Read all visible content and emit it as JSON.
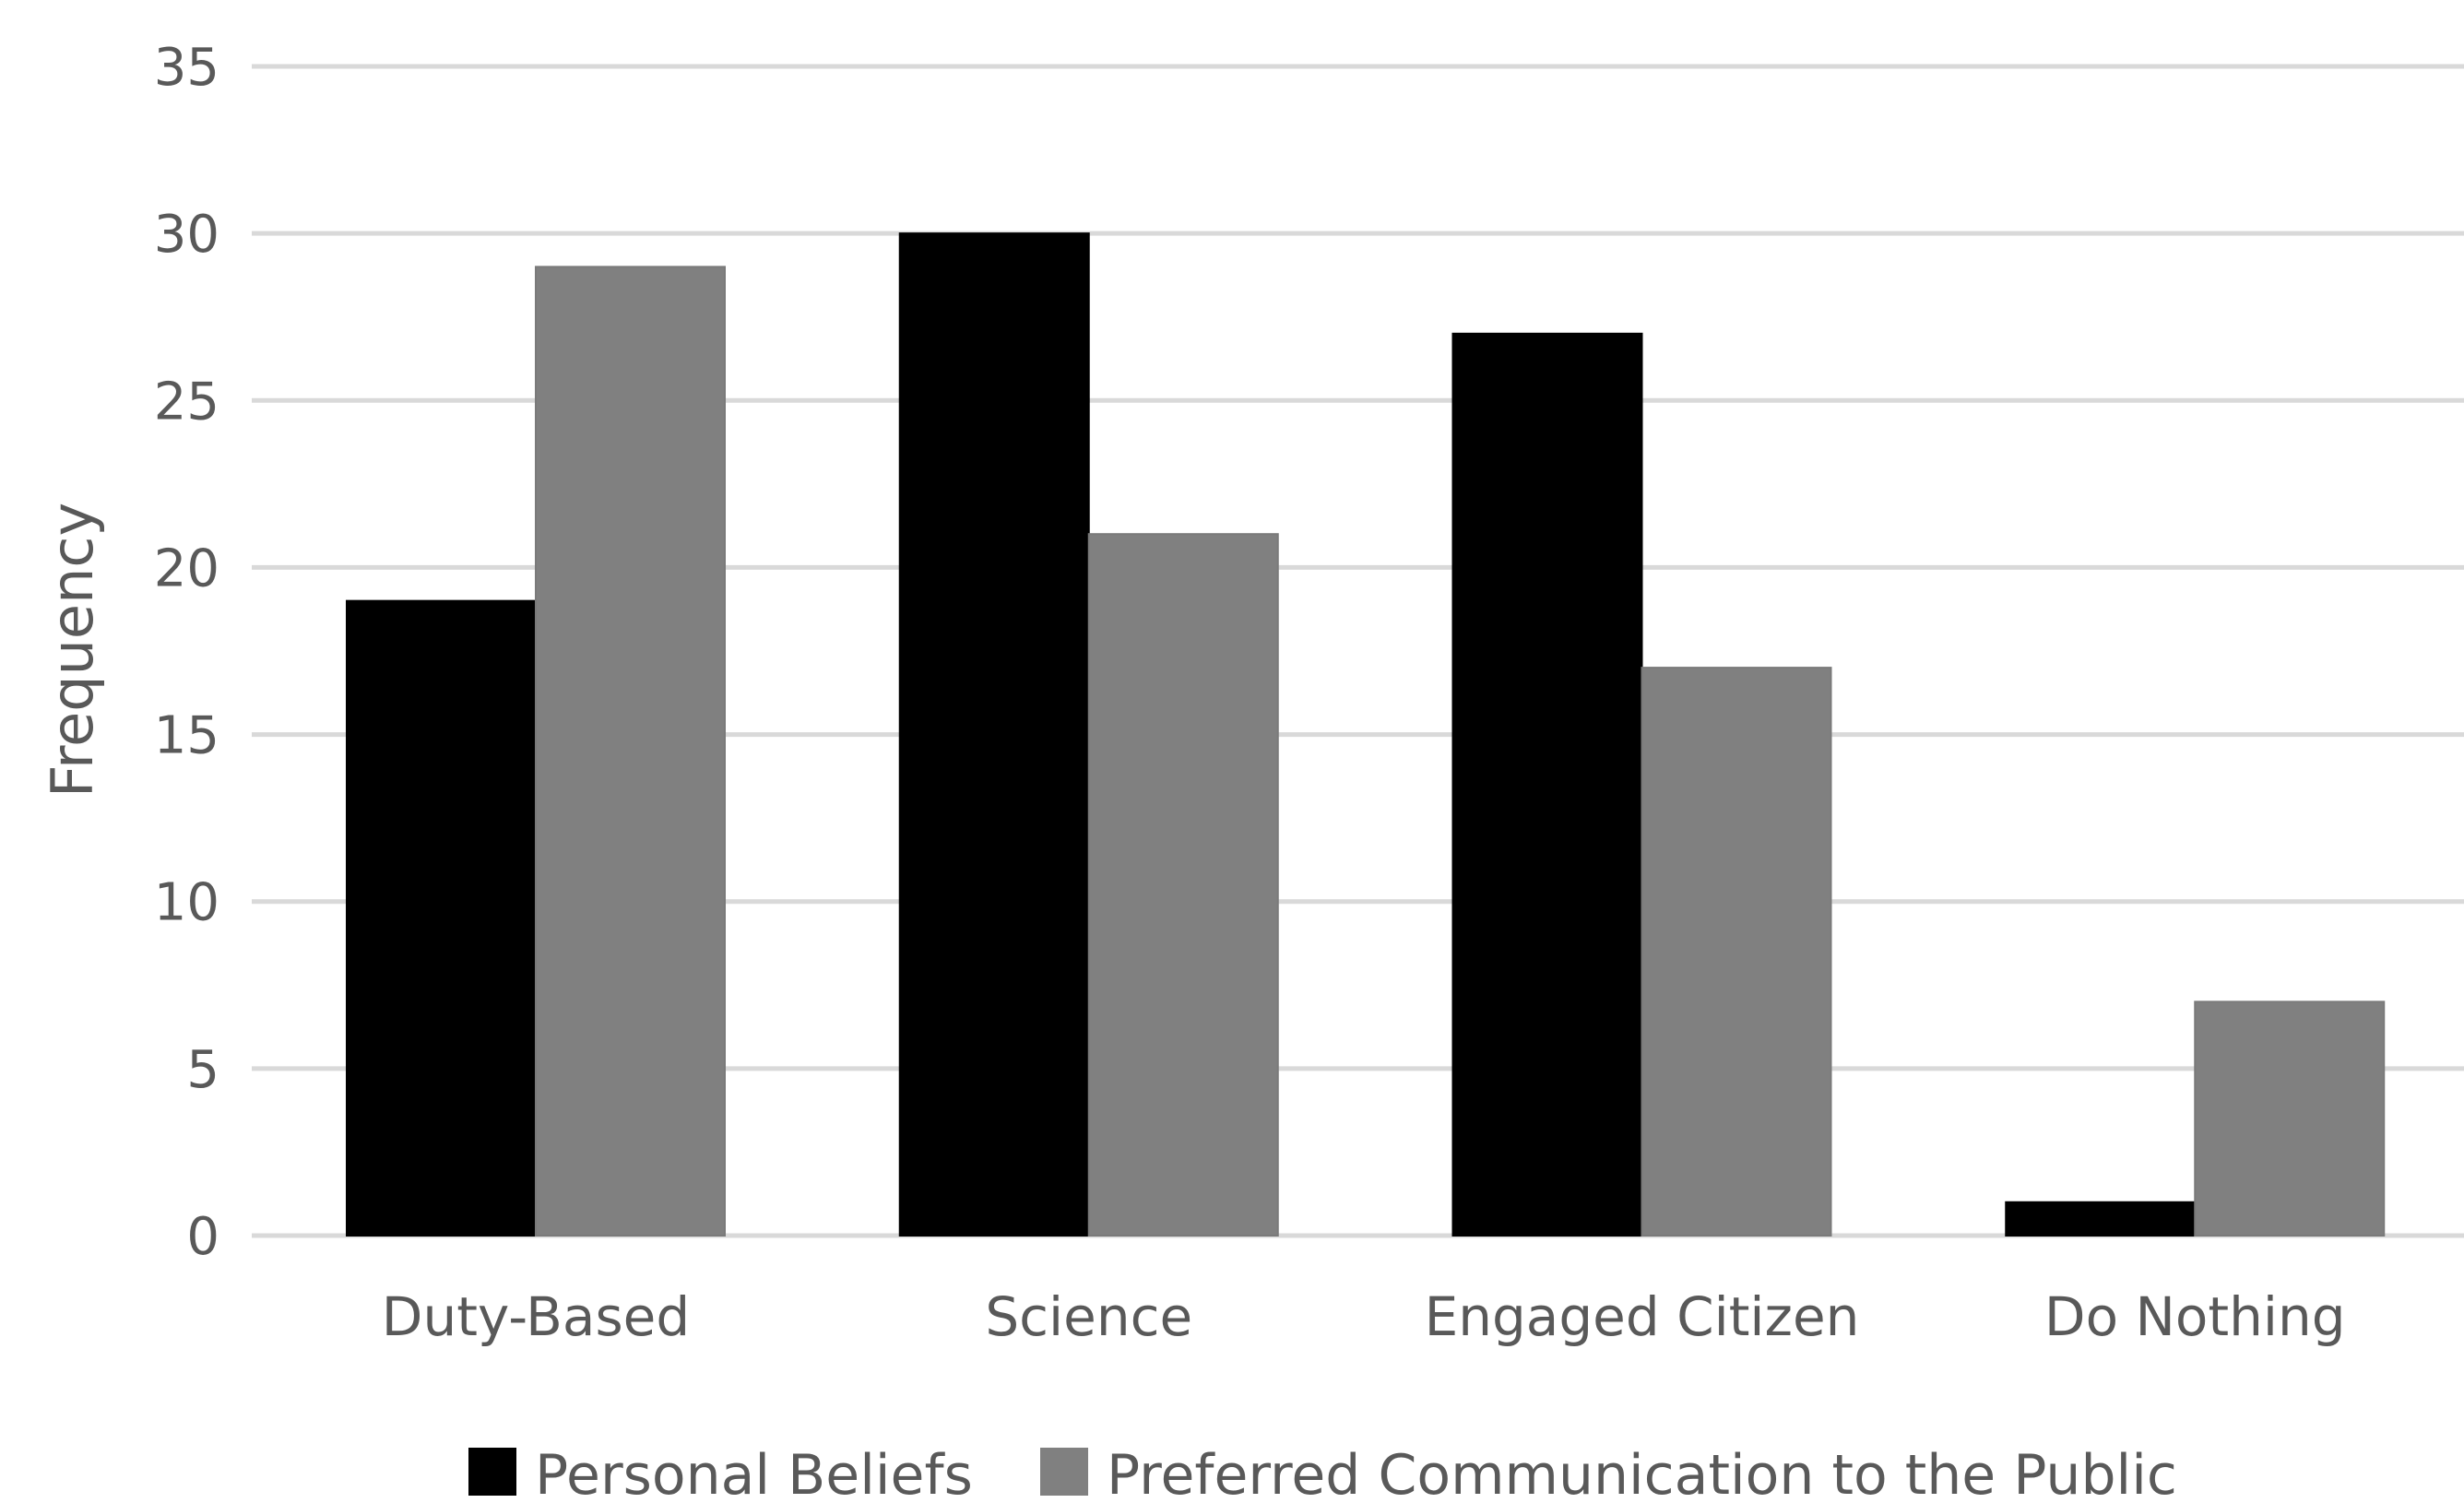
{
  "chart_data": {
    "type": "bar",
    "title": "",
    "xlabel": "",
    "ylabel": "Frequency",
    "categories": [
      "Duty-Based",
      "Science",
      "Engaged Citizen",
      "Do Nothing"
    ],
    "series": [
      {
        "name": "Personal Beliefs",
        "values": [
          19,
          30,
          27,
          1
        ],
        "color": "#000000"
      },
      {
        "name": "Preferred Communication to the Public",
        "values": [
          29,
          21,
          17,
          7
        ],
        "color": "#808080"
      }
    ],
    "ylim": [
      0,
      35
    ],
    "yticks": [
      "0",
      "5",
      "10",
      "15",
      "20",
      "25",
      "30",
      "35"
    ],
    "grid": true,
    "legend_position": "bottom",
    "colors": {
      "gridline": "#d9d9d9",
      "text": "#595959",
      "background": "#ffffff"
    }
  }
}
